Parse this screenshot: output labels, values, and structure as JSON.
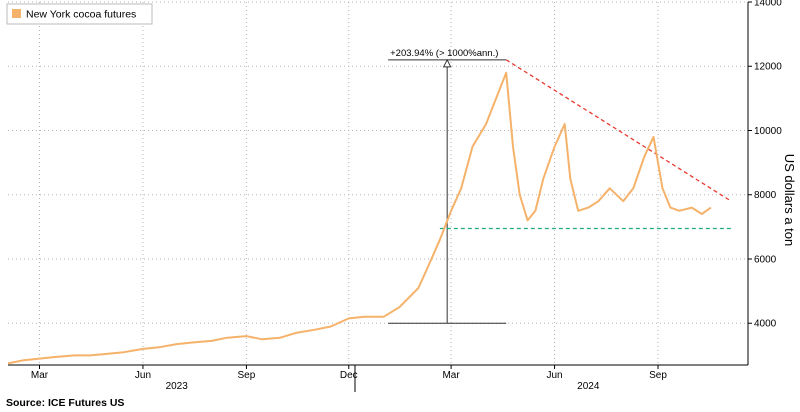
{
  "chart_data": {
    "type": "line",
    "title": "",
    "legend": {
      "label": "New York cocoa futures",
      "placement": "top-left",
      "color": "#f5b26b"
    },
    "ylabel": "US dollars a ton",
    "ylim": [
      2700,
      14000
    ],
    "y_ticks": [
      4000,
      6000,
      8000,
      10000,
      12000,
      14000
    ],
    "y_tick_labels": [
      "4000",
      "6000",
      "8000",
      "10000",
      "12000",
      "14000"
    ],
    "xlim": [
      "2023-02-01",
      "2024-11-20"
    ],
    "x_month_ticks": [
      {
        "date": "2023-03-01",
        "label": "Mar"
      },
      {
        "date": "2023-06-01",
        "label": "Jun"
      },
      {
        "date": "2023-09-01",
        "label": "Sep"
      },
      {
        "date": "2023-12-01",
        "label": "Dec"
      },
      {
        "date": "2024-03-01",
        "label": "Mar"
      },
      {
        "date": "2024-06-01",
        "label": "Jun"
      },
      {
        "date": "2024-09-01",
        "label": "Sep"
      }
    ],
    "x_year_labels": [
      {
        "date": "2023-07-01",
        "label": "2023"
      },
      {
        "date": "2024-07-01",
        "label": "2024"
      }
    ],
    "series": [
      {
        "color": "#f5b26b",
        "x": [
          "2023-02-01",
          "2023-02-15",
          "2023-03-01",
          "2023-03-15",
          "2023-04-01",
          "2023-04-15",
          "2023-05-01",
          "2023-05-15",
          "2023-06-01",
          "2023-06-15",
          "2023-07-01",
          "2023-07-15",
          "2023-08-01",
          "2023-08-15",
          "2023-09-01",
          "2023-09-15",
          "2023-10-01",
          "2023-10-15",
          "2023-11-01",
          "2023-11-15",
          "2023-12-01",
          "2023-12-15",
          "2024-01-01",
          "2024-01-15",
          "2024-02-01",
          "2024-02-10",
          "2024-02-20",
          "2024-03-01",
          "2024-03-10",
          "2024-03-20",
          "2024-04-01",
          "2024-04-10",
          "2024-04-19",
          "2024-04-25",
          "2024-05-01",
          "2024-05-08",
          "2024-05-15",
          "2024-05-22",
          "2024-06-01",
          "2024-06-10",
          "2024-06-15",
          "2024-06-22",
          "2024-07-01",
          "2024-07-10",
          "2024-07-20",
          "2024-08-01",
          "2024-08-10",
          "2024-08-20",
          "2024-08-28",
          "2024-09-05",
          "2024-09-12",
          "2024-09-20",
          "2024-10-01",
          "2024-10-10",
          "2024-10-18"
        ],
        "y": [
          2750,
          2850,
          2900,
          2950,
          3000,
          3000,
          3050,
          3100,
          3200,
          3250,
          3350,
          3400,
          3450,
          3550,
          3600,
          3500,
          3550,
          3700,
          3800,
          3900,
          4150,
          4200,
          4200,
          4500,
          5100,
          5800,
          6600,
          7500,
          8200,
          9500,
          10200,
          11000,
          11800,
          9500,
          8000,
          7200,
          7500,
          8500,
          9500,
          10200,
          8500,
          7500,
          7600,
          7800,
          8200,
          7800,
          8200,
          9200,
          9800,
          8200,
          7600,
          7500,
          7600,
          7400,
          7600
        ]
      }
    ],
    "annotations": {
      "change_label": "+203.94% (> 1000%ann.)",
      "range_bar": {
        "from_date": "2024-01-05",
        "to_date": "2024-04-19",
        "low": 4000,
        "high": 12200
      },
      "resistance_trendline": {
        "from_date": "2024-04-19",
        "from": 12200,
        "to_date": "2024-11-05",
        "to": 7800,
        "color": "#e8392f"
      },
      "support_line": {
        "from_date": "2024-02-20",
        "to_date": "2024-11-05",
        "value": 6950,
        "color": "#1fad7e"
      }
    },
    "grid": true
  },
  "source": "Source: ICE Futures US"
}
